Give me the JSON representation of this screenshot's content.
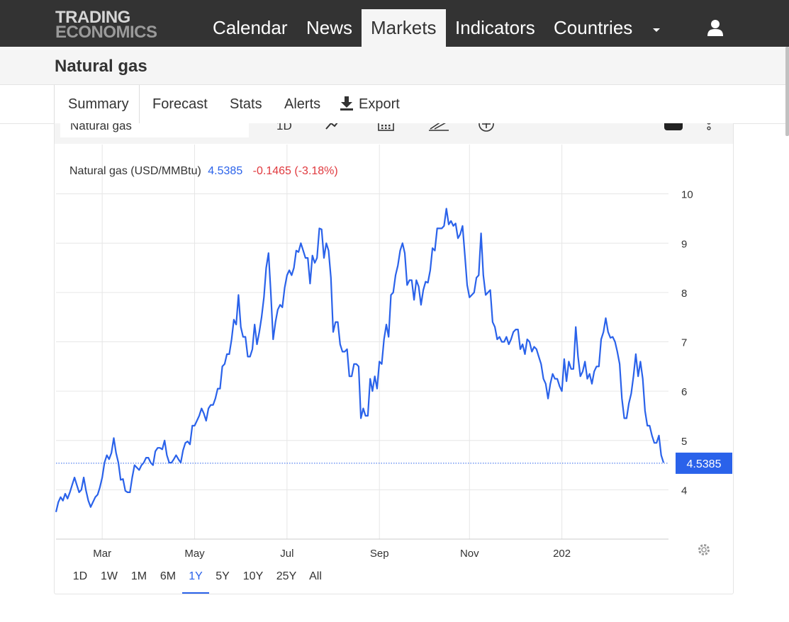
{
  "nav": {
    "logo_line1": "TRADING",
    "logo_line2": "ECONOMICS",
    "items": [
      "Calendar",
      "News",
      "Markets",
      "Indicators",
      "Countries"
    ],
    "active": "Markets"
  },
  "page": {
    "title": "Natural gas"
  },
  "tabs": {
    "items": [
      "Summary",
      "Forecast",
      "Stats",
      "Alerts",
      "Export"
    ],
    "active": "Summary"
  },
  "toolbar": {
    "search_value": "Natural gas",
    "interval": "1D"
  },
  "legend": {
    "name": "Natural gas (USD/MMBtu)",
    "value": "4.5385",
    "change": "-0.1465 (-3.18%)"
  },
  "range_buttons": {
    "items": [
      "1D",
      "1W",
      "1M",
      "6M",
      "1Y",
      "5Y",
      "10Y",
      "25Y",
      "All"
    ],
    "active": "1Y"
  },
  "colors": {
    "line": "#2a62ea",
    "up": "#2a62ea",
    "down": "#e0393e",
    "nav_bg": "#333333"
  },
  "chart_data": {
    "type": "line",
    "series_name": "Natural gas (USD/MMBtu)",
    "last_value": 4.5385,
    "ylim": [
      3.0,
      11.0
    ],
    "yticks": [
      4,
      5,
      6,
      7,
      8,
      9,
      10
    ],
    "xtick_labels": [
      "Mar",
      "May",
      "Jul",
      "Sep",
      "Nov",
      "202"
    ],
    "xtick_positions": [
      20,
      60,
      100,
      140,
      179,
      219
    ],
    "grid": true,
    "values": [
      3.55,
      3.75,
      3.85,
      3.78,
      3.92,
      3.82,
      3.95,
      4.1,
      4.25,
      4.1,
      3.95,
      4.0,
      4.25,
      3.98,
      3.78,
      3.65,
      3.75,
      3.85,
      3.9,
      4.05,
      4.25,
      4.55,
      4.7,
      4.62,
      4.75,
      5.05,
      4.75,
      4.55,
      4.2,
      4.22,
      3.98,
      3.95,
      3.95,
      4.25,
      4.5,
      4.45,
      4.4,
      4.5,
      4.55,
      4.65,
      4.65,
      4.55,
      4.5,
      4.78,
      4.85,
      4.85,
      4.82,
      5.0,
      4.7,
      4.55,
      4.55,
      4.62,
      4.7,
      4.62,
      4.55,
      4.8,
      4.95,
      4.98,
      4.92,
      5.3,
      5.3,
      5.4,
      5.5,
      5.65,
      5.55,
      5.4,
      5.65,
      5.72,
      5.72,
      5.85,
      6.05,
      6.05,
      6.5,
      6.55,
      6.75,
      6.75,
      7.05,
      7.45,
      7.35,
      7.95,
      7.3,
      7.1,
      7.1,
      6.7,
      6.7,
      6.85,
      7.35,
      6.95,
      7.2,
      7.5,
      7.9,
      8.5,
      8.8,
      8.0,
      7.05,
      7.4,
      7.65,
      7.75,
      7.7,
      8.1,
      8.35,
      8.45,
      8.35,
      8.5,
      8.85,
      8.82,
      9.0,
      8.85,
      8.7,
      8.7,
      8.18,
      8.75,
      8.6,
      8.7,
      9.3,
      9.28,
      8.7,
      9.0,
      8.85,
      8.3,
      7.2,
      7.4,
      7.4,
      6.95,
      6.8,
      6.8,
      6.85,
      6.3,
      6.3,
      6.55,
      6.55,
      6.5,
      5.45,
      5.65,
      5.5,
      5.5,
      6.25,
      6.0,
      6.3,
      6.05,
      6.6,
      6.55,
      7.05,
      7.35,
      7.1,
      7.95,
      8.0,
      8.35,
      8.55,
      8.85,
      9.0,
      8.8,
      8.15,
      8.25,
      8.25,
      7.85,
      8.25,
      8.12,
      7.75,
      8.05,
      8.22,
      8.2,
      8.45,
      8.9,
      8.85,
      9.3,
      9.3,
      9.3,
      9.35,
      9.7,
      9.38,
      9.45,
      9.35,
      9.4,
      9.1,
      9.18,
      9.35,
      8.75,
      8.15,
      7.9,
      7.95,
      8.0,
      8.3,
      8.35,
      9.2,
      8.35,
      7.95,
      8.0,
      8.05,
      7.4,
      7.3,
      7.05,
      7.1,
      7.0,
      7.0,
      7.1,
      6.95,
      7.05,
      7.2,
      7.25,
      7.25,
      6.85,
      6.95,
      6.75,
      7.05,
      7.0,
      6.8,
      6.9,
      6.85,
      6.7,
      6.55,
      6.25,
      6.15,
      5.85,
      6.15,
      6.35,
      6.25,
      6.25,
      6.1,
      6.0,
      6.65,
      6.2,
      6.6,
      6.45,
      6.45,
      7.3,
      6.7,
      6.3,
      6.4,
      6.6,
      6.25,
      6.35,
      6.15,
      6.4,
      6.5,
      6.5,
      7.05,
      7.2,
      7.48,
      7.2,
      7.08,
      7.1,
      7.0,
      6.8,
      6.55,
      5.85,
      5.45,
      5.45,
      5.75,
      5.95,
      6.3,
      6.75,
      6.3,
      6.6,
      6.25,
      5.6,
      5.3,
      5.3,
      5.1,
      4.95,
      4.95,
      5.1,
      4.7,
      4.55
    ]
  }
}
